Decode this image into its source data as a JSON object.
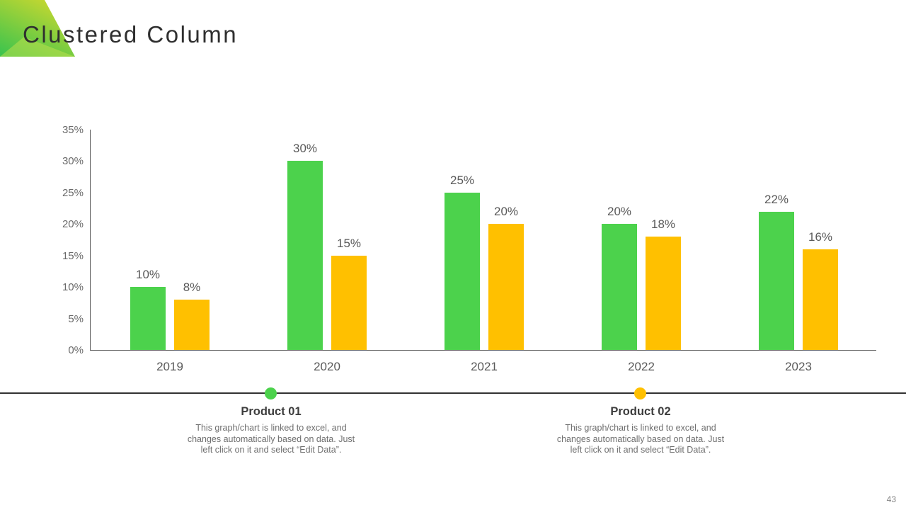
{
  "page": {
    "title": "Clustered Column",
    "page_number": "43"
  },
  "theme": {
    "corner_gradient_top": "#cbd82f",
    "corner_gradient_bottom": "#3ec44d",
    "corner_highlight": "#c4e24e",
    "divider_color": "#333333"
  },
  "chart_data": {
    "type": "bar",
    "title": "",
    "xlabel": "",
    "ylabel": "",
    "categories": [
      "2019",
      "2020",
      "2021",
      "2022",
      "2023"
    ],
    "series": [
      {
        "name": "Product 01",
        "color": "#4CD24C",
        "values": [
          10,
          30,
          25,
          20,
          22
        ]
      },
      {
        "name": "Product 02",
        "color": "#FFC000",
        "values": [
          8,
          15,
          20,
          18,
          16
        ]
      }
    ],
    "ylim": [
      0,
      35
    ],
    "yticks": [
      0,
      5,
      10,
      15,
      20,
      25,
      30,
      35
    ],
    "value_suffix": "%",
    "grid": false,
    "data_labels": true,
    "legend_position": "below"
  },
  "legend": {
    "items": [
      {
        "label": "Product 01",
        "color": "#4CD24C",
        "desc_lines": [
          "This graph/chart is linked to excel, and",
          "changes automatically based on data. Just",
          "left click on it and select “Edit Data”."
        ]
      },
      {
        "label": "Product 02",
        "color": "#FFC000",
        "desc_lines": [
          "This graph/chart is linked to excel, and",
          "changes automatically based on data. Just",
          "left click on it and select “Edit Data”."
        ]
      }
    ]
  }
}
